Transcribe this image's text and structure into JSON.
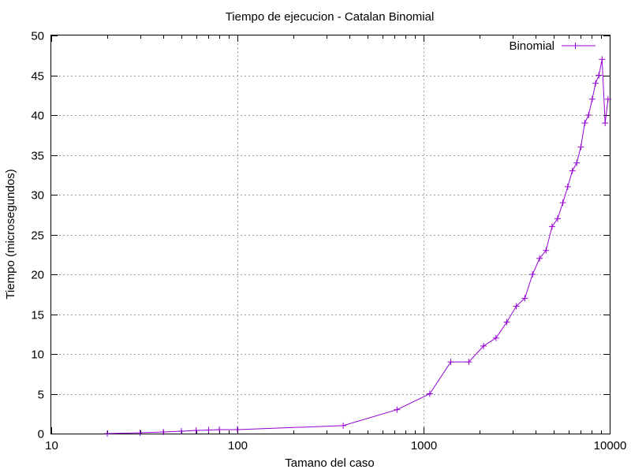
{
  "chart_data": {
    "type": "line",
    "title": "Tiempo de ejecucion - Catalan Binomial",
    "xlabel": "Tamano del caso",
    "ylabel": "Tiempo (microsegundos)",
    "xscale": "log",
    "xlim": [
      10,
      10000
    ],
    "ylim": [
      0,
      50
    ],
    "xticks": [
      10,
      100,
      1000,
      10000
    ],
    "yticks": [
      0,
      5,
      10,
      15,
      20,
      25,
      30,
      35,
      40,
      45,
      50
    ],
    "grid": true,
    "legend": "top-right",
    "series": [
      {
        "name": "Binomial",
        "color": "#9400d3",
        "marker": "plus",
        "x": [
          20,
          30,
          40,
          50,
          60,
          70,
          80,
          100,
          370,
          720,
          1080,
          1400,
          1750,
          2100,
          2450,
          2800,
          3150,
          3500,
          3850,
          4200,
          4550,
          4900,
          5250,
          5600,
          5950,
          6300,
          6650,
          7000,
          7350,
          7700,
          8050,
          8400,
          8750,
          9100,
          9450,
          9800
        ],
        "y": [
          0,
          0.1,
          0.2,
          0.3,
          0.4,
          0.45,
          0.5,
          0.5,
          1,
          3,
          5,
          9,
          9,
          11,
          12,
          14,
          16,
          17,
          20,
          22,
          23,
          26,
          27,
          29,
          31,
          33,
          34,
          36,
          39,
          40,
          42,
          44,
          45,
          47,
          39,
          42
        ]
      }
    ]
  }
}
